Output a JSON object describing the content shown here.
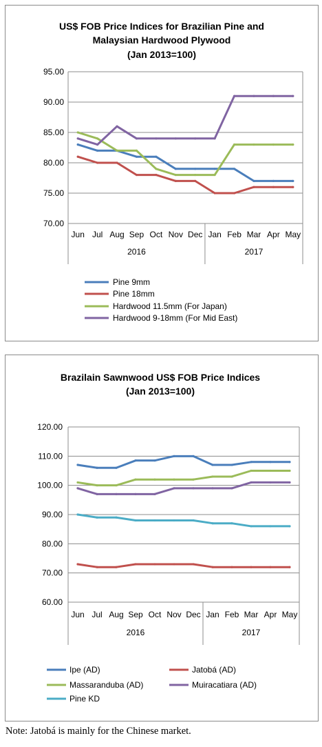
{
  "note": "Note: Jatobá is mainly for the Chinese market.",
  "chart_data": [
    {
      "type": "line",
      "title": "US$ FOB Price Indices for Brazilian Pine and Malaysian Hardwood Plywood",
      "title_lines": [
        "US$ FOB Price Indices for Brazilian Pine and",
        "Malaysian Hardwood Plywood",
        "(Jan 2013=100)"
      ],
      "categories": [
        "Jun",
        "Jul",
        "Aug",
        "Sep",
        "Oct",
        "Nov",
        "Dec",
        "Jan",
        "Feb",
        "Mar",
        "Apr",
        "May"
      ],
      "year_groups": [
        {
          "label": "2016",
          "count": 7
        },
        {
          "label": "2017",
          "count": 5
        }
      ],
      "ylim": [
        70,
        95
      ],
      "yticks": [
        "70.00",
        "75.00",
        "80.00",
        "85.00",
        "90.00",
        "95.00"
      ],
      "grid": true,
      "legend_position": "bottom",
      "series": [
        {
          "name": "Pine 9mm",
          "color": "#4a7ebb",
          "values": [
            83,
            82,
            82,
            81,
            81,
            79,
            79,
            79,
            79,
            77,
            77,
            77
          ]
        },
        {
          "name": "Pine 18mm",
          "color": "#c0504d",
          "values": [
            81,
            80,
            80,
            78,
            78,
            77,
            77,
            75,
            75,
            76,
            76,
            76
          ]
        },
        {
          "name": "Hardwood 11.5mm (For Japan)",
          "color": "#9bbb59",
          "values": [
            85,
            84,
            82,
            82,
            79,
            78,
            78,
            78,
            83,
            83,
            83,
            83
          ]
        },
        {
          "name": "Hardwood 9-18mm (For Mid East)",
          "color": "#8064a2",
          "values": [
            84,
            83,
            86,
            84,
            84,
            84,
            84,
            84,
            91,
            91,
            91,
            91
          ]
        }
      ]
    },
    {
      "type": "line",
      "title": "Brazilain Sawnwood US$ FOB Price Indices",
      "title_lines": [
        "Brazilain Sawnwood US$ FOB Price Indices",
        "(Jan 2013=100)"
      ],
      "categories": [
        "Jun",
        "Jul",
        "Aug",
        "Sep",
        "Oct",
        "Nov",
        "Dec",
        "Jan",
        "Feb",
        "Mar",
        "Apr",
        "May"
      ],
      "year_groups": [
        {
          "label": "2016",
          "count": 7
        },
        {
          "label": "2017",
          "count": 5
        }
      ],
      "ylim": [
        60,
        120
      ],
      "yticks": [
        "60.00",
        "70.00",
        "80.00",
        "90.00",
        "100.00",
        "110.00",
        "120.00"
      ],
      "grid": true,
      "legend_position": "bottom",
      "series": [
        {
          "name": "Ipe (AD)",
          "color": "#4a7ebb",
          "values": [
            107,
            106,
            106,
            108.5,
            108.5,
            110,
            110,
            107,
            107,
            108,
            108,
            108
          ]
        },
        {
          "name": "Jatobá (AD)",
          "color": "#c0504d",
          "values": [
            73,
            72,
            72,
            73,
            73,
            73,
            73,
            72,
            72,
            72,
            72,
            72
          ]
        },
        {
          "name": "Massaranduba (AD)",
          "color": "#9bbb59",
          "values": [
            101,
            100,
            100,
            102,
            102,
            102,
            102,
            103,
            103,
            105,
            105,
            105
          ]
        },
        {
          "name": "Muiracatiara (AD)",
          "color": "#8064a2",
          "values": [
            99,
            97,
            97,
            97,
            97,
            99,
            99,
            99,
            99,
            101,
            101,
            101
          ]
        },
        {
          "name": "Pine KD",
          "color": "#4bacc6",
          "values": [
            90,
            89,
            89,
            88,
            88,
            88,
            88,
            87,
            87,
            86,
            86,
            86
          ]
        }
      ]
    }
  ]
}
